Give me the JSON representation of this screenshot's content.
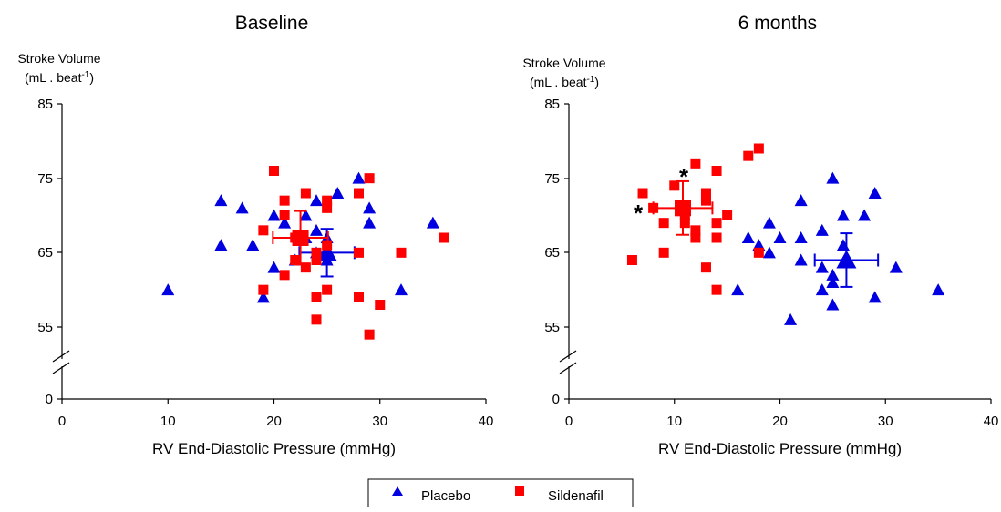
{
  "legend": {
    "placebo_label": "Placebo",
    "sildenafil_label": "Sildenafil"
  },
  "colors": {
    "placebo": "#0000e0",
    "sildenafil": "#ff0000",
    "asterisk": "#1a1a6e"
  },
  "chart_data": [
    {
      "type": "scatter",
      "title": "Baseline",
      "xlabel": "RV End-Diastolic Pressure (mmHg)",
      "ylabel_line1": "Stroke Volume",
      "ylabel_line2_prefix": "(mL . beat",
      "ylabel_line2_sup": "-1",
      "ylabel_line2_suffix": ")",
      "xlim": [
        0,
        40
      ],
      "xticks": [
        "0",
        "10",
        "20",
        "30",
        "40"
      ],
      "yticks": [
        "0",
        "55",
        "65",
        "75",
        "85"
      ],
      "axis_break": true,
      "legend_position": "bottom-center",
      "asterisks": [],
      "series": [
        {
          "name": "Placebo",
          "marker": "triangle",
          "points": [
            [
              10,
              60
            ],
            [
              15,
              72
            ],
            [
              15,
              66
            ],
            [
              17,
              71
            ],
            [
              18,
              66
            ],
            [
              19,
              59
            ],
            [
              20,
              70
            ],
            [
              20,
              63
            ],
            [
              21,
              69
            ],
            [
              22,
              64
            ],
            [
              23,
              67
            ],
            [
              23,
              70
            ],
            [
              24,
              72
            ],
            [
              24,
              65
            ],
            [
              24,
              68
            ],
            [
              25,
              67
            ],
            [
              25,
              64
            ],
            [
              26,
              73
            ],
            [
              28,
              75
            ],
            [
              29,
              71
            ],
            [
              29,
              69
            ],
            [
              32,
              60
            ],
            [
              35,
              69
            ]
          ],
          "mean": {
            "x": 25,
            "y": 65,
            "xerr": [
              2.6,
              2.6
            ],
            "yerr": [
              3.2,
              3.2
            ]
          }
        },
        {
          "name": "Sildenafil",
          "marker": "square",
          "points": [
            [
              19,
              68
            ],
            [
              19,
              60
            ],
            [
              20,
              76
            ],
            [
              21,
              72
            ],
            [
              21,
              70
            ],
            [
              21,
              62
            ],
            [
              22,
              67
            ],
            [
              22,
              64
            ],
            [
              23,
              73
            ],
            [
              23,
              63
            ],
            [
              24,
              65
            ],
            [
              24,
              64
            ],
            [
              24,
              59
            ],
            [
              24,
              56
            ],
            [
              25,
              72
            ],
            [
              25,
              71
            ],
            [
              25,
              66
            ],
            [
              25,
              60
            ],
            [
              28,
              73
            ],
            [
              28,
              65
            ],
            [
              28,
              59
            ],
            [
              29,
              75
            ],
            [
              29,
              54
            ],
            [
              30,
              58
            ],
            [
              32,
              65
            ],
            [
              36,
              67
            ]
          ],
          "mean": {
            "x": 22.5,
            "y": 67,
            "xerr": [
              2.6,
              2.6
            ],
            "yerr": [
              3.6,
              3.6
            ]
          }
        }
      ]
    },
    {
      "type": "scatter",
      "title": "6 months",
      "xlabel": "RV End-Diastolic Pressure (mmHg)",
      "ylabel_line1": "Stroke Volume",
      "ylabel_line2_prefix": "(mL . beat",
      "ylabel_line2_sup": "-1",
      "ylabel_line2_suffix": ")",
      "xlim": [
        0,
        40
      ],
      "xticks": [
        "0",
        "10",
        "20",
        "30",
        "40"
      ],
      "yticks": [
        "0",
        "55",
        "65",
        "75",
        "85"
      ],
      "axis_break": true,
      "legend_position": "bottom-center",
      "asterisks": [
        {
          "text": "*"
        },
        {
          "text": "*"
        }
      ],
      "series": [
        {
          "name": "Placebo",
          "marker": "triangle",
          "points": [
            [
              16,
              60
            ],
            [
              17,
              67
            ],
            [
              18,
              66
            ],
            [
              19,
              69
            ],
            [
              19,
              65
            ],
            [
              20,
              67
            ],
            [
              21,
              56
            ],
            [
              22,
              72
            ],
            [
              22,
              67
            ],
            [
              22,
              64
            ],
            [
              24,
              68
            ],
            [
              24,
              63
            ],
            [
              24,
              60
            ],
            [
              25,
              75
            ],
            [
              25,
              62
            ],
            [
              25,
              61
            ],
            [
              25,
              58
            ],
            [
              26,
              70
            ],
            [
              26,
              66
            ],
            [
              28,
              70
            ],
            [
              29,
              73
            ],
            [
              29,
              59
            ],
            [
              31,
              63
            ],
            [
              35,
              60
            ]
          ],
          "mean": {
            "x": 26.3,
            "y": 64,
            "xerr": [
              3,
              3
            ],
            "yerr": [
              3.6,
              3.6
            ]
          }
        },
        {
          "name": "Sildenafil",
          "marker": "square",
          "points": [
            [
              6,
              64
            ],
            [
              7,
              73
            ],
            [
              8,
              71
            ],
            [
              9,
              69
            ],
            [
              9,
              65
            ],
            [
              10,
              74
            ],
            [
              11,
              70
            ],
            [
              11,
              69
            ],
            [
              12,
              77
            ],
            [
              12,
              68
            ],
            [
              12,
              67
            ],
            [
              13,
              73
            ],
            [
              13,
              72
            ],
            [
              13,
              63
            ],
            [
              14,
              76
            ],
            [
              14,
              69
            ],
            [
              14,
              67
            ],
            [
              14,
              60
            ],
            [
              15,
              70
            ],
            [
              17,
              78
            ],
            [
              18,
              79
            ],
            [
              18,
              65
            ]
          ],
          "mean": {
            "x": 10.8,
            "y": 71,
            "xerr": [
              2.8,
              2.8
            ],
            "yerr": [
              3.6,
              3.6
            ]
          }
        }
      ]
    }
  ]
}
